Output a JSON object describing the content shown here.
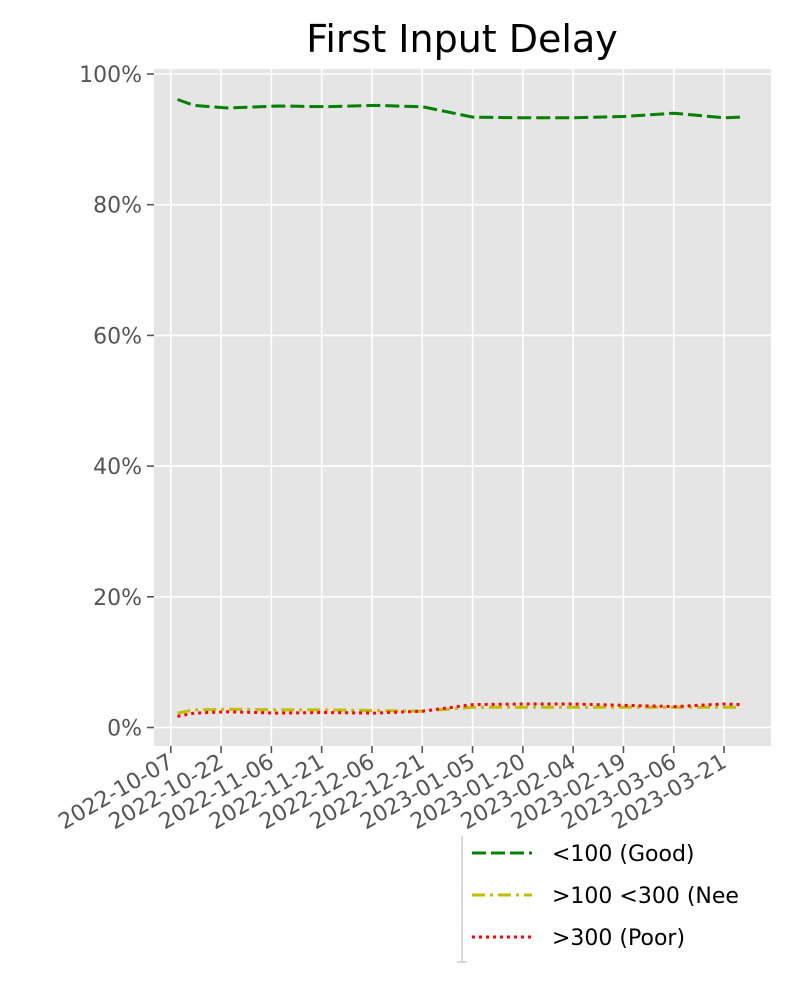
{
  "chart_data": {
    "type": "line",
    "title": "First Input Delay",
    "xlabel": "",
    "ylabel": "",
    "x_tick_labels": [
      "2022-10-07",
      "2022-10-22",
      "2022-11-06",
      "2022-11-21",
      "2022-12-06",
      "2022-12-21",
      "2023-01-05",
      "2023-01-20",
      "2023-02-04",
      "2023-02-19",
      "2023-03-06",
      "2023-03-21"
    ],
    "y_tick_labels": [
      "0%",
      "20%",
      "40%",
      "60%",
      "80%",
      "100%"
    ],
    "ylim": [
      0,
      1
    ],
    "xlim": [
      "2022-10-02",
      "2023-04-04"
    ],
    "grid": true,
    "legend_position": "bottom-right, outside plot",
    "background": "#e5e5e5",
    "x": [
      "2022-10-09",
      "2022-10-14",
      "2022-10-24",
      "2022-11-08",
      "2022-11-22",
      "2022-12-07",
      "2022-12-21",
      "2023-01-05",
      "2023-01-20",
      "2023-02-04",
      "2023-02-19",
      "2023-03-06",
      "2023-03-21",
      "2023-03-26"
    ],
    "series": [
      {
        "name": "<100 (Good)",
        "color": "#008000",
        "linestyle": "dashed",
        "values": [
          0.961,
          0.952,
          0.948,
          0.951,
          0.95,
          0.952,
          0.95,
          0.934,
          0.933,
          0.933,
          0.935,
          0.94,
          0.933,
          0.934
        ]
      },
      {
        "name": ">100  <300 (Nee",
        "color": "#bfbf00",
        "linestyle": "dashdot",
        "values": [
          0.022,
          0.027,
          0.028,
          0.027,
          0.027,
          0.026,
          0.025,
          0.031,
          0.031,
          0.031,
          0.031,
          0.031,
          0.031,
          0.031
        ]
      },
      {
        "name": ">300 (Poor)",
        "color": "#ff0000",
        "linestyle": "dotted",
        "values": [
          0.017,
          0.022,
          0.024,
          0.022,
          0.023,
          0.022,
          0.025,
          0.035,
          0.036,
          0.036,
          0.034,
          0.032,
          0.036,
          0.035
        ]
      }
    ]
  }
}
